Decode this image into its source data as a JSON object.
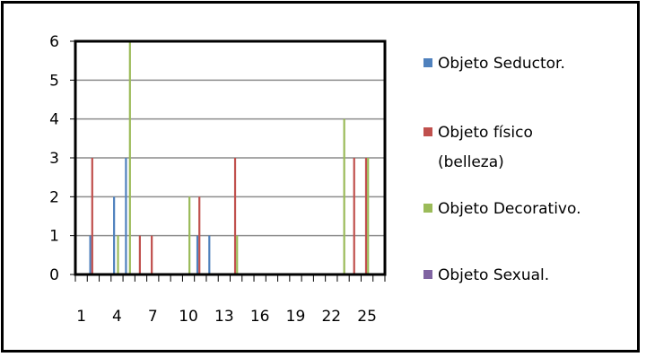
{
  "chart_data": {
    "type": "bar",
    "title": "",
    "xlabel": "",
    "ylabel": "",
    "ylim": [
      0,
      6
    ],
    "yticks": [
      0,
      1,
      2,
      3,
      4,
      5,
      6
    ],
    "xlim": [
      1,
      26
    ],
    "xtick_labels": [
      "1",
      "4",
      "7",
      "10",
      "13",
      "16",
      "19",
      "22",
      "25"
    ],
    "grid": "horizontal",
    "legend_position": "right",
    "series": [
      {
        "name": "Objeto Seductor.",
        "color": "#4f81bd",
        "points": [
          [
            2,
            1
          ],
          [
            4,
            2
          ],
          [
            5,
            3
          ],
          [
            11,
            1
          ],
          [
            12,
            1
          ]
        ]
      },
      {
        "name": "Objeto físico (belleza)",
        "legend_lines": [
          "Objeto físico",
          "(belleza)"
        ],
        "color": "#c0504d",
        "points": [
          [
            2,
            3
          ],
          [
            6,
            1
          ],
          [
            7,
            1
          ],
          [
            11,
            2
          ],
          [
            14,
            3
          ],
          [
            24,
            3
          ],
          [
            25,
            3
          ]
        ]
      },
      {
        "name": "Objeto Decorativo.",
        "color": "#9bbb59",
        "points": [
          [
            4,
            1
          ],
          [
            5,
            6
          ],
          [
            10,
            2
          ],
          [
            14,
            1
          ],
          [
            23,
            4
          ],
          [
            25,
            3
          ]
        ]
      },
      {
        "name": "Objeto Sexual.",
        "color": "#8064a2",
        "points": []
      }
    ]
  }
}
